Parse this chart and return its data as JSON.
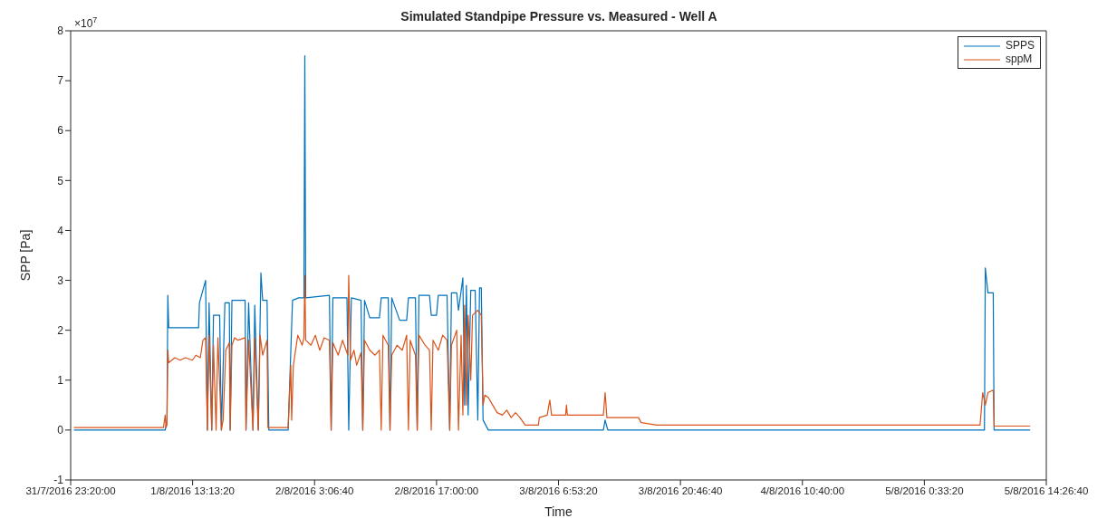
{
  "chart_data": {
    "type": "line",
    "title": "Simulated Standpipe Pressure vs. Measured - Well A",
    "xlabel": "Time",
    "ylabel": "SPP [Pa]",
    "annotations": [
      "×10$^{7}$"
    ],
    "xlim": [
      "2016-07-31T23:20",
      "2016-08-05T14:26:40"
    ],
    "xticks": [
      {
        "value": "2016-07-31T23:20",
        "label": "31/7/2016 23:20:00"
      },
      {
        "value": "2016-08-01T13:13:20",
        "label": "1/8/2016 13:13:20"
      },
      {
        "value": "2016-08-02T03:06:40",
        "label": "2/8/2016 3:06:40"
      },
      {
        "value": "2016-08-02T17:00",
        "label": "2/8/2016 17:00:00"
      },
      {
        "value": "2016-08-03T06:53:20",
        "label": "3/8/2016 6:53:20"
      },
      {
        "value": "2016-08-03T20:46:40",
        "label": "3/8/2016 20:46:40"
      },
      {
        "value": "2016-08-04T10:40",
        "label": "4/8/2016 10:40:00"
      },
      {
        "value": "2016-08-05T00:33:20",
        "label": "5/8/2016 0:33:20"
      },
      {
        "value": "2016-08-05T14:26:40",
        "label": "5/8/2016 14:26:40"
      }
    ],
    "ylim": [
      -1,
      8
    ],
    "yticks": [
      -1,
      0,
      1,
      2,
      3,
      4,
      5,
      6,
      7,
      8
    ],
    "legend": "top right",
    "grid": false,
    "marker": "none",
    "series": [
      {
        "name": "SPPS",
        "color": "#0072bd",
        "x": [
          "2016-07-31T23:42",
          "2016-08-01T10:06",
          "2016-08-01T10:18",
          "2016-08-01T10:24",
          "2016-08-01T10:30",
          "2016-08-01T13:54",
          "2016-08-01T14:00",
          "2016-08-01T14:42",
          "2016-08-01T14:54",
          "2016-08-01T15:06",
          "2016-08-01T15:24",
          "2016-08-01T15:36",
          "2016-08-01T16:18",
          "2016-08-01T16:30",
          "2016-08-01T16:54",
          "2016-08-01T17:24",
          "2016-08-01T17:30",
          "2016-08-01T17:42",
          "2016-08-01T19:12",
          "2016-08-01T19:18",
          "2016-08-01T19:36",
          "2016-08-01T20:06",
          "2016-08-01T20:18",
          "2016-08-01T20:42",
          "2016-08-01T21:00",
          "2016-08-01T21:12",
          "2016-08-01T21:42",
          "2016-08-01T21:54",
          "2016-08-02T00:06",
          "2016-08-02T00:36",
          "2016-08-02T01:18",
          "2016-08-02T01:54",
          "2016-08-02T02:00",
          "2016-08-02T02:06",
          "2016-08-02T04:48",
          "2016-08-02T05:00",
          "2016-08-02T05:12",
          "2016-08-02T06:48",
          "2016-08-02T07:00",
          "2016-08-02T07:18",
          "2016-08-02T08:24",
          "2016-08-02T08:36",
          "2016-08-02T08:48",
          "2016-08-02T09:24",
          "2016-08-02T10:30",
          "2016-08-02T10:42",
          "2016-08-02T11:30",
          "2016-08-02T11:42",
          "2016-08-02T11:54",
          "2016-08-02T12:48",
          "2016-08-02T13:36",
          "2016-08-02T13:48",
          "2016-08-02T14:36",
          "2016-08-02T14:48",
          "2016-08-02T15:00",
          "2016-08-02T16:12",
          "2016-08-02T16:24",
          "2016-08-02T17:00",
          "2016-08-02T17:12",
          "2016-08-02T18:12",
          "2016-08-02T18:30",
          "2016-08-02T18:42",
          "2016-08-02T19:18",
          "2016-08-02T19:30",
          "2016-08-02T20:00",
          "2016-08-02T20:12",
          "2016-08-02T20:24",
          "2016-08-02T20:36",
          "2016-08-02T20:54",
          "2016-08-02T21:24",
          "2016-08-02T21:42",
          "2016-08-02T21:54",
          "2016-08-02T22:06",
          "2016-08-02T22:18",
          "2016-08-02T22:54",
          "2016-08-03T12:00",
          "2016-08-03T12:12",
          "2016-08-03T12:30",
          "2016-08-05T07:24",
          "2016-08-05T07:30",
          "2016-08-05T07:48",
          "2016-08-05T08:24",
          "2016-08-05T08:30",
          "2016-08-05T12:36"
        ],
        "values": [
          0,
          0,
          0.2,
          2.7,
          2.05,
          2.05,
          2.55,
          3.0,
          0,
          2.55,
          0,
          2.3,
          2.3,
          0,
          2.55,
          2.55,
          0,
          2.6,
          2.6,
          0,
          2.55,
          0,
          2.5,
          0,
          3.15,
          2.6,
          2.6,
          0,
          0,
          2.6,
          2.65,
          2.65,
          7.5,
          2.65,
          2.7,
          0,
          2.65,
          2.65,
          0,
          2.65,
          2.6,
          0,
          2.6,
          2.25,
          2.25,
          2.65,
          2.65,
          0,
          2.65,
          2.2,
          2.2,
          2.65,
          2.65,
          0,
          2.7,
          2.7,
          2.3,
          2.3,
          2.7,
          2.7,
          0,
          2.75,
          2.75,
          2.4,
          3.05,
          0.5,
          2.9,
          0.3,
          2.8,
          2.8,
          0.2,
          2.85,
          2.85,
          0.2,
          0,
          0,
          0.2,
          0,
          0,
          3.25,
          2.75,
          2.75,
          0,
          0
        ]
      },
      {
        "name": "sppM",
        "color": "#d95319",
        "x": [
          "2016-07-31T23:42",
          "2016-08-01T09:54",
          "2016-08-01T10:06",
          "2016-08-01T10:12",
          "2016-08-01T10:18",
          "2016-08-01T10:24",
          "2016-08-01T10:30",
          "2016-08-01T11:12",
          "2016-08-01T11:48",
          "2016-08-01T12:24",
          "2016-08-01T13:12",
          "2016-08-01T13:36",
          "2016-08-01T14:06",
          "2016-08-01T14:24",
          "2016-08-01T14:42",
          "2016-08-01T14:54",
          "2016-08-01T15:06",
          "2016-08-01T15:24",
          "2016-08-01T15:36",
          "2016-08-01T15:54",
          "2016-08-01T16:06",
          "2016-08-01T16:30",
          "2016-08-01T16:42",
          "2016-08-01T17:00",
          "2016-08-01T17:24",
          "2016-08-01T17:30",
          "2016-08-01T17:42",
          "2016-08-01T18:00",
          "2016-08-01T18:24",
          "2016-08-01T19:12",
          "2016-08-01T19:18",
          "2016-08-01T19:36",
          "2016-08-01T20:06",
          "2016-08-01T20:18",
          "2016-08-01T20:42",
          "2016-08-01T20:54",
          "2016-08-01T21:12",
          "2016-08-01T21:42",
          "2016-08-01T21:48",
          "2016-08-02T00:06",
          "2016-08-02T00:24",
          "2016-08-02T00:30",
          "2016-08-02T00:42",
          "2016-08-02T01:12",
          "2016-08-02T01:42",
          "2016-08-02T01:54",
          "2016-08-02T02:00",
          "2016-08-02T02:06",
          "2016-08-02T02:42",
          "2016-08-02T03:12",
          "2016-08-02T03:42",
          "2016-08-02T04:12",
          "2016-08-02T04:48",
          "2016-08-02T05:00",
          "2016-08-02T05:12",
          "2016-08-02T05:48",
          "2016-08-02T06:18",
          "2016-08-02T06:54",
          "2016-08-02T07:00",
          "2016-08-02T07:12",
          "2016-08-02T07:36",
          "2016-08-02T07:54",
          "2016-08-02T08:24",
          "2016-08-02T08:36",
          "2016-08-02T08:48",
          "2016-08-02T09:24",
          "2016-08-02T10:00",
          "2016-08-02T10:30",
          "2016-08-02T10:42",
          "2016-08-02T10:54",
          "2016-08-02T11:30",
          "2016-08-02T11:42",
          "2016-08-02T11:54",
          "2016-08-02T12:30",
          "2016-08-02T13:06",
          "2016-08-02T13:36",
          "2016-08-02T13:48",
          "2016-08-02T14:00",
          "2016-08-02T14:36",
          "2016-08-02T14:48",
          "2016-08-02T15:00",
          "2016-08-02T15:42",
          "2016-08-02T16:12",
          "2016-08-02T16:24",
          "2016-08-02T16:36",
          "2016-08-02T17:12",
          "2016-08-02T17:42",
          "2016-08-02T18:12",
          "2016-08-02T18:30",
          "2016-08-02T18:42",
          "2016-08-02T19:18",
          "2016-08-02T19:30",
          "2016-08-02T19:48",
          "2016-08-02T20:00",
          "2016-08-02T20:12",
          "2016-08-02T20:24",
          "2016-08-02T20:36",
          "2016-08-02T20:54",
          "2016-08-02T21:06",
          "2016-08-02T21:42",
          "2016-08-02T22:06",
          "2016-08-02T22:18",
          "2016-08-02T22:30",
          "2016-08-02T22:54",
          "2016-08-02T23:24",
          "2016-08-02T23:54",
          "2016-08-03T00:30",
          "2016-08-03T01:00",
          "2016-08-03T01:30",
          "2016-08-03T02:00",
          "2016-08-03T02:30",
          "2016-08-03T03:06",
          "2016-08-03T04:36",
          "2016-08-03T04:42",
          "2016-08-03T05:36",
          "2016-08-03T05:54",
          "2016-08-03T06:06",
          "2016-08-03T07:42",
          "2016-08-03T07:48",
          "2016-08-03T07:54",
          "2016-08-03T12:00",
          "2016-08-03T12:12",
          "2016-08-03T12:24",
          "2016-08-03T16:00",
          "2016-08-03T16:18",
          "2016-08-03T18:06",
          "2016-08-05T06:54",
          "2016-08-05T07:12",
          "2016-08-05T07:30",
          "2016-08-05T07:48",
          "2016-08-05T08:24",
          "2016-08-05T08:30",
          "2016-08-05T12:36"
        ],
        "values": [
          0.05,
          0.05,
          0.3,
          0.05,
          0.1,
          1.6,
          1.35,
          1.45,
          1.4,
          1.45,
          1.4,
          1.5,
          1.45,
          1.8,
          1.85,
          0,
          1.9,
          0,
          1.7,
          0,
          1.85,
          0,
          0.2,
          1.6,
          1.75,
          0,
          1.7,
          1.85,
          1.8,
          1.85,
          0,
          1.8,
          0,
          1.85,
          0,
          1.9,
          1.5,
          1.8,
          0.05,
          0.05,
          1.3,
          0.2,
          1.3,
          1.9,
          1.7,
          1.85,
          3.1,
          1.8,
          1.7,
          1.9,
          1.6,
          1.85,
          1.8,
          0,
          1.75,
          1.5,
          1.8,
          1.5,
          3.1,
          1.4,
          1.6,
          1.3,
          1.55,
          0,
          1.8,
          1.6,
          1.5,
          1.6,
          0,
          1.9,
          1.7,
          0,
          1.5,
          1.7,
          1.6,
          1.9,
          0,
          1.8,
          1.5,
          0,
          1.9,
          1.7,
          1.6,
          0,
          1.8,
          1.6,
          1.9,
          1.8,
          0,
          1.7,
          2.0,
          0,
          1.9,
          0.3,
          2.5,
          0.5,
          2.3,
          1.0,
          2.3,
          2.4,
          2.3,
          0.5,
          0.7,
          0.65,
          0.5,
          0.35,
          0.3,
          0.4,
          0.25,
          0.35,
          0.25,
          0.1,
          0.1,
          0.25,
          0.3,
          0.6,
          0.3,
          0.3,
          0.5,
          0.3,
          0.3,
          0.75,
          0.25,
          0.25,
          0.15,
          0.1,
          0.1,
          0.75,
          0.5,
          0.75,
          0.8,
          0.08,
          0.08
        ]
      }
    ]
  }
}
